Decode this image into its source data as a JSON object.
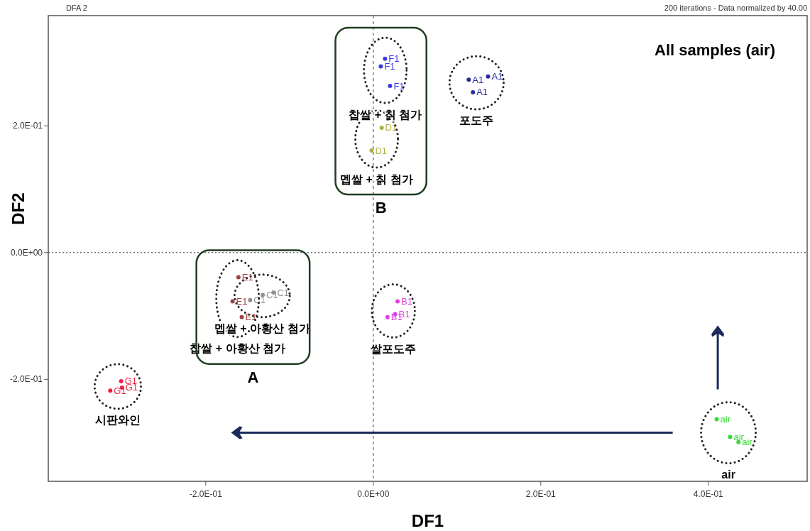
{
  "chart_data": {
    "type": "scatter",
    "title": "All samples (air)",
    "xlabel": "DF1",
    "ylabel": "DF2",
    "xlim": [
      -0.388,
      0.518
    ],
    "ylim": [
      -0.361,
      0.374
    ],
    "xticks": [
      {
        "value": -0.2,
        "label": "-2.0E-01"
      },
      {
        "value": 0,
        "label": "0.0E+00"
      },
      {
        "value": 0.2,
        "label": "2.0E-01"
      },
      {
        "value": 0.4,
        "label": "4.0E-01"
      }
    ],
    "yticks": [
      {
        "value": -0.2,
        "label": "-2.0E-01"
      },
      {
        "value": 0,
        "label": "0.0E+00"
      },
      {
        "value": 0.2,
        "label": "2.0E-01"
      }
    ],
    "grid": false,
    "ref_lines": [
      {
        "axis": "x",
        "value": 0,
        "line_style": "dashed",
        "color": "#333333"
      },
      {
        "axis": "y",
        "value": 0,
        "line_style": "dotted",
        "color": "#333333"
      }
    ],
    "series": [
      {
        "name": "F1",
        "color": "#3a3ae8",
        "x": [
          0.014,
          0.009,
          0.02
        ],
        "values": [
          0.306,
          0.294,
          0.263
        ]
      },
      {
        "name": "D1",
        "color": "#b0b040",
        "x": [
          0.01,
          -0.002
        ],
        "values": [
          0.197,
          0.161
        ]
      },
      {
        "name": "A1",
        "color": "#2b2ba0",
        "x": [
          0.114,
          0.137,
          0.119
        ],
        "values": [
          0.273,
          0.278,
          0.253
        ]
      },
      {
        "name": "C1",
        "color": "#909090",
        "x": [
          -0.147,
          -0.132,
          -0.119
        ],
        "values": [
          -0.075,
          -0.067,
          -0.063
        ]
      },
      {
        "name": "E1",
        "color": "#a04040",
        "x": [
          -0.161,
          -0.168,
          -0.157
        ],
        "values": [
          -0.039,
          -0.077,
          -0.102
        ]
      },
      {
        "name": "B1",
        "color": "#e040e0",
        "x": [
          0.029,
          0.026,
          0.017
        ],
        "values": [
          -0.077,
          -0.097,
          -0.102
        ]
      },
      {
        "name": "G1",
        "color": "#ee2244",
        "x": [
          -0.301,
          -0.314,
          -0.3
        ],
        "values": [
          -0.203,
          -0.218,
          -0.213
        ]
      },
      {
        "name": "air",
        "color": "#33dd33",
        "x": [
          0.41,
          0.426,
          0.436
        ],
        "values": [
          -0.263,
          -0.291,
          -0.299
        ]
      }
    ],
    "annotations": [
      "DFA 2",
      "200 iterations - Data normalized by 40.00",
      "찹쌀 + 칡 첨가",
      "멥쌀 + 칡 첨가",
      "포도주",
      "멥쌀 + 아황산 첨가",
      "찹쌀 + 아황산 첨가",
      "쌀포도주",
      "시판와인",
      "air",
      "B",
      "A"
    ]
  }
}
